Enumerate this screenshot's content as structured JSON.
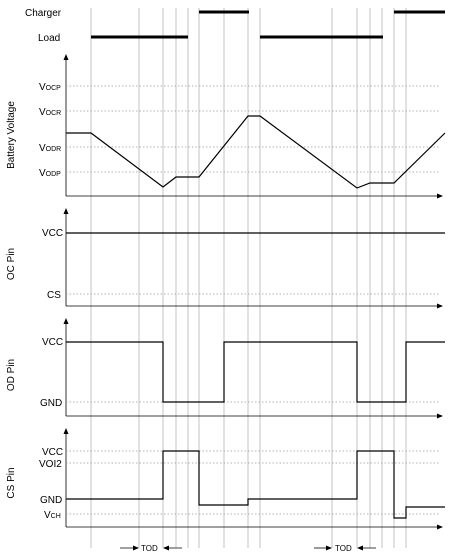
{
  "signals": {
    "charger": "Charger",
    "load": "Load"
  },
  "battery": {
    "title": "Battery Voltage",
    "levels": {
      "vocp_main": "V",
      "vocp_sub": "OCP",
      "vocr_main": "V",
      "vocr_sub": "OCR",
      "vodr_main": "V",
      "vodr_sub": "ODR",
      "vodp_main": "V",
      "vodp_sub": "ODP"
    }
  },
  "oc_pin": {
    "title": "OC Pin",
    "levels": {
      "vcc": "VCC",
      "cs": "CS"
    }
  },
  "od_pin": {
    "title": "OD Pin",
    "levels": {
      "vcc": "VCC",
      "gnd": "GND"
    }
  },
  "cs_pin": {
    "title": "CS Pin",
    "levels": {
      "vcc": "VCC",
      "voi2": "VOI2",
      "gnd": "GND",
      "vch_main": "V",
      "vch_sub": "CH"
    }
  },
  "delays": {
    "tod_1": "TOD",
    "tod_2": "TOD"
  }
}
